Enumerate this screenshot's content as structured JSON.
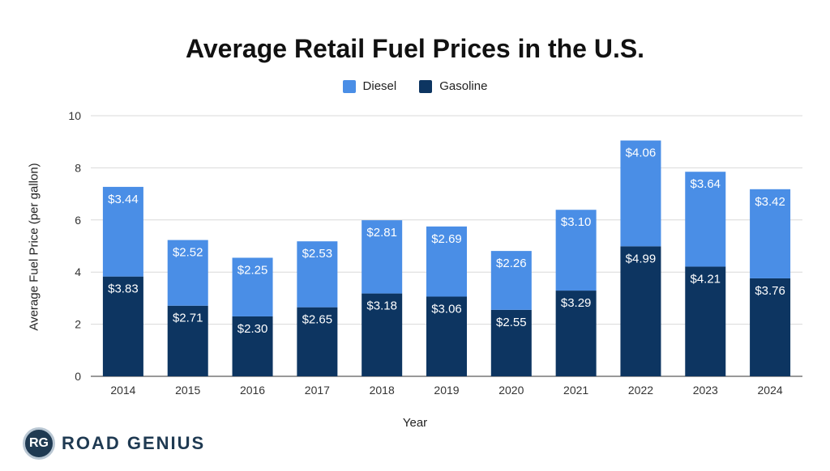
{
  "chart_data": {
    "type": "bar",
    "stacked": true,
    "title": "Average Retail Fuel Prices in the U.S.",
    "xlabel": "Year",
    "ylabel": "Average Fuel Price (per gallon)",
    "ylim": [
      0,
      10
    ],
    "yticks": [
      0,
      2,
      4,
      6,
      8,
      10
    ],
    "grid": true,
    "legend_position": "top-center",
    "categories": [
      "2014",
      "2015",
      "2016",
      "2017",
      "2018",
      "2019",
      "2020",
      "2021",
      "2022",
      "2023",
      "2024"
    ],
    "series": [
      {
        "name": "Gasoline",
        "color": "#0d3561",
        "values": [
          3.83,
          2.71,
          2.3,
          2.65,
          3.18,
          3.06,
          2.55,
          3.29,
          4.99,
          4.21,
          3.76
        ],
        "labels": [
          "$3.83",
          "$2.71",
          "$2.30",
          "$2.65",
          "$3.18",
          "$3.06",
          "$2.55",
          "$3.29",
          "$4.99",
          "$4.21",
          "$3.76"
        ]
      },
      {
        "name": "Diesel",
        "color": "#4a8ee6",
        "values": [
          3.44,
          2.52,
          2.25,
          2.53,
          2.81,
          2.69,
          2.26,
          3.1,
          4.06,
          3.64,
          3.42
        ],
        "labels": [
          "$3.44",
          "$2.52",
          "$2.25",
          "$2.53",
          "$2.81",
          "$2.69",
          "$2.26",
          "$3.10",
          "$4.06",
          "$3.64",
          "$3.42"
        ]
      }
    ]
  },
  "legend": {
    "diesel": "Diesel",
    "gasoline": "Gasoline",
    "diesel_color": "#4a8ee6",
    "gasoline_color": "#0d3561"
  },
  "brand": {
    "logo_text": "RG",
    "name": "ROAD GENIUS"
  }
}
